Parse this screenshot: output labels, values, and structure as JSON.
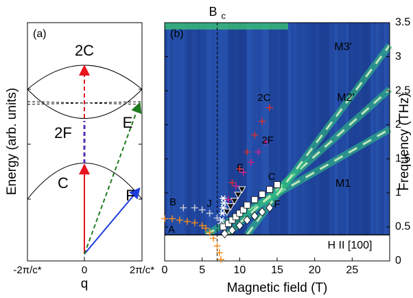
{
  "chart_data": [
    {
      "type": "diagram",
      "panel_label": "(a)",
      "xlabel": "q",
      "ylabel": "Energy (arb. units)",
      "x_tick_labels": [
        "-2π/c*",
        "0",
        "2π/c*"
      ],
      "arrow_labels": [
        "2C",
        "2F",
        "C",
        "F",
        "E"
      ],
      "arrow_colors": [
        "#e8141e",
        "#2a2ad0",
        "#e8141e",
        "#1e3cdc",
        "#1e7a1e"
      ]
    },
    {
      "type": "scatter",
      "panel_label": "(b)",
      "xlabel": "Magnetic field (T)",
      "ylabel": "Frequency (THz)",
      "xlim": [
        0,
        30
      ],
      "xticks": [
        0,
        5,
        10,
        15,
        20,
        25
      ],
      "ylim": [
        0,
        3.5
      ],
      "yticks": [
        0,
        0.5,
        1,
        1.5,
        2,
        2.5,
        3,
        3.5
      ],
      "y_axis_side": "right",
      "critical_field": {
        "label_main": "B",
        "label_sub": "c",
        "x": 7.0
      },
      "field_direction": "H II [100]",
      "mode_labels": [
        "M1",
        "M2'",
        "M3'"
      ],
      "series": [
        {
          "name": "A",
          "color": "#ee8c22",
          "marker": "plus",
          "x": [
            0,
            1,
            2,
            3,
            4,
            5,
            5.5,
            6,
            6.5,
            7,
            7.3,
            7.5
          ],
          "values": [
            0.62,
            0.62,
            0.6,
            0.58,
            0.56,
            0.52,
            0.48,
            0.42,
            0.33,
            0.22,
            0.12,
            0.02
          ]
        },
        {
          "name": "B",
          "color": "#c4c8d8",
          "marker": "plus",
          "x": [
            2.5,
            4,
            5,
            6,
            7,
            7.5
          ],
          "values": [
            0.78,
            0.78,
            0.75,
            0.7,
            0.63,
            0.55
          ]
        },
        {
          "name": "J",
          "color": "#ffffff",
          "marker": "star",
          "x": [
            7.6,
            7.7,
            7.8,
            7.9,
            7.8
          ],
          "values": [
            0.6,
            0.7,
            0.78,
            0.85,
            0.92
          ]
        },
        {
          "name": "E",
          "color": "#111111",
          "marker": "triangle",
          "x": [
            8.3,
            8.8,
            9.3,
            9.8,
            10.3
          ],
          "values": [
            0.72,
            0.8,
            0.88,
            0.97,
            1.05
          ]
        },
        {
          "name": "2F",
          "color": "#d0208a",
          "marker": "plus",
          "x": [
            8.5,
            9.5,
            10.5,
            11.5,
            12.5,
            13.5
          ],
          "values": [
            0.9,
            1.1,
            1.3,
            1.45,
            1.6,
            1.75
          ]
        },
        {
          "name": "2C",
          "color": "#d83030",
          "marker": "plus",
          "x": [
            9,
            10,
            11,
            12,
            13,
            14
          ],
          "values": [
            1.15,
            1.35,
            1.6,
            1.85,
            2.05,
            2.25
          ]
        },
        {
          "name": "C",
          "color": "#ffffff",
          "marker": "square",
          "x": [
            7.8,
            8.5,
            9,
            9.5,
            10,
            10.5,
            11,
            12,
            13,
            14,
            15
          ],
          "values": [
            0.5,
            0.55,
            0.6,
            0.65,
            0.7,
            0.75,
            0.82,
            0.9,
            0.98,
            1.05,
            1.12
          ]
        },
        {
          "name": "F",
          "color": "#ffffff",
          "marker": "diamond",
          "x": [
            8,
            9,
            10,
            11,
            12,
            13,
            14
          ],
          "values": [
            0.4,
            0.45,
            0.52,
            0.6,
            0.66,
            0.72,
            0.78
          ]
        }
      ]
    }
  ]
}
